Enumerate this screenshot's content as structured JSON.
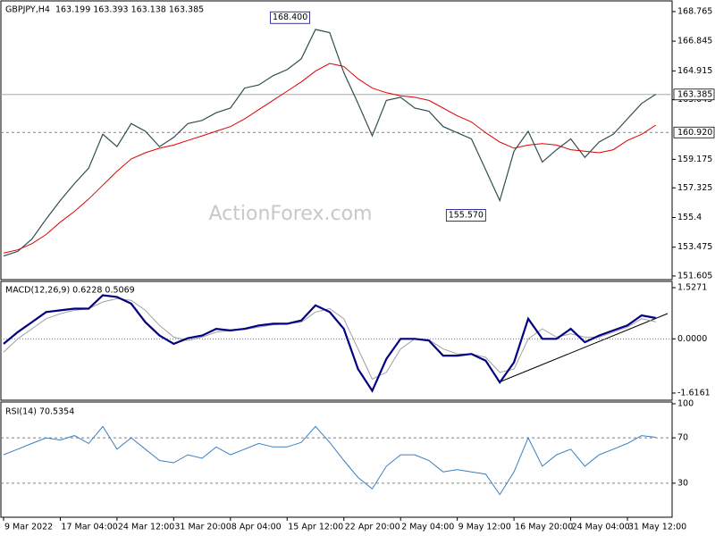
{
  "chart_data": [
    {
      "type": "line",
      "title": "GBPJPY,H4",
      "subtitle": "163.199 163.393 163.138 163.385",
      "watermark": "ActionForex.com",
      "xlim": [
        -0.75,
        188.6
      ],
      "ylim": [
        151.37,
        169.4
      ],
      "yticks": [
        168.765,
        166.845,
        164.915,
        163.045,
        159.175,
        157.325,
        155.4,
        153.475,
        151.605
      ],
      "x": [
        0,
        4,
        8,
        12,
        16,
        20,
        24,
        28,
        32,
        36,
        40,
        44,
        48,
        52,
        56,
        60,
        64,
        68,
        72,
        76,
        80,
        84,
        88,
        92,
        96,
        100,
        104,
        108,
        112,
        116,
        120,
        124,
        128,
        132,
        136,
        140,
        144,
        148,
        152,
        156,
        160,
        164,
        168,
        172,
        176,
        180,
        184
      ],
      "series": [
        {
          "color": "#2f4f4f",
          "width": 1.2,
          "values": [
            152.9,
            153.2,
            154.0,
            155.3,
            156.5,
            157.6,
            158.6,
            160.8,
            160.0,
            161.5,
            161.0,
            160.0,
            160.6,
            161.5,
            161.7,
            162.2,
            162.5,
            163.8,
            164.0,
            164.6,
            165.0,
            165.7,
            167.6,
            167.4,
            164.8,
            162.8,
            160.7,
            163.0,
            163.2,
            162.5,
            162.3,
            161.3,
            160.9,
            160.5,
            158.5,
            156.5,
            159.7,
            161.0,
            159.0,
            159.8,
            160.5,
            159.3,
            160.3,
            160.8,
            161.8,
            162.8,
            163.4
          ]
        },
        {
          "color": "#e00000",
          "width": 1,
          "values": [
            153.1,
            153.3,
            153.7,
            154.3,
            155.1,
            155.8,
            156.6,
            157.5,
            158.4,
            159.2,
            159.6,
            159.9,
            160.1,
            160.4,
            160.7,
            161.0,
            161.3,
            161.8,
            162.4,
            163.0,
            163.6,
            164.2,
            164.9,
            165.4,
            165.2,
            164.4,
            163.8,
            163.5,
            163.3,
            163.2,
            163.0,
            162.5,
            162.0,
            161.6,
            160.9,
            160.3,
            159.9,
            160.1,
            160.2,
            160.1,
            159.8,
            159.7,
            159.6,
            159.8,
            160.4,
            160.8,
            161.4
          ]
        }
      ],
      "levels": [
        {
          "value": 163.385,
          "label": "163.385",
          "style": "solid"
        },
        {
          "value": 160.92,
          "label": "160.920",
          "style": "dashed"
        }
      ],
      "annotations": [
        {
          "x": 87.4,
          "value": 168.4,
          "label": "168.400"
        },
        {
          "x": 137,
          "value": 155.57,
          "label": "155.570"
        }
      ]
    },
    {
      "type": "line",
      "title": "MACD(12,26,9) 0.6228 0.5069",
      "xlim": [
        -0.75,
        188.6
      ],
      "ylim": [
        -1.83,
        1.687
      ],
      "yticks": [
        1.5271,
        {
          "value": 0,
          "label": "0.0000"
        },
        -1.6161
      ],
      "x": [
        0,
        4,
        8,
        12,
        16,
        20,
        24,
        28,
        32,
        36,
        40,
        44,
        48,
        52,
        56,
        60,
        64,
        68,
        72,
        76,
        80,
        84,
        88,
        92,
        96,
        100,
        104,
        108,
        112,
        116,
        120,
        124,
        128,
        132,
        136,
        140,
        144,
        148,
        152,
        156,
        160,
        164,
        168,
        172,
        176,
        180,
        184
      ],
      "series": [
        {
          "color": "#a0a0a0",
          "width": 1,
          "values": [
            -0.4,
            0.0,
            0.3,
            0.6,
            0.75,
            0.85,
            0.9,
            1.1,
            1.2,
            1.15,
            0.85,
            0.4,
            0.05,
            -0.05,
            0.05,
            0.2,
            0.25,
            0.28,
            0.35,
            0.42,
            0.45,
            0.5,
            0.8,
            0.9,
            0.6,
            -0.3,
            -1.2,
            -1.0,
            -0.3,
            0.0,
            -0.03,
            -0.3,
            -0.45,
            -0.45,
            -0.55,
            -1.0,
            -0.9,
            0.0,
            0.3,
            0.05,
            0.15,
            0.05,
            0.05,
            0.2,
            0.35,
            0.6,
            0.51
          ]
        },
        {
          "color": "#000080",
          "width": 2.2,
          "values": [
            -0.15,
            0.2,
            0.5,
            0.8,
            0.85,
            0.9,
            0.9,
            1.3,
            1.25,
            1.05,
            0.5,
            0.1,
            -0.15,
            0.02,
            0.1,
            0.3,
            0.25,
            0.3,
            0.4,
            0.45,
            0.45,
            0.55,
            1.0,
            0.8,
            0.3,
            -0.9,
            -1.55,
            -0.6,
            0.0,
            0.0,
            -0.05,
            -0.5,
            -0.5,
            -0.45,
            -0.65,
            -1.3,
            -0.7,
            0.6,
            0.0,
            0.0,
            0.3,
            -0.1,
            0.1,
            0.25,
            0.4,
            0.7,
            0.62
          ]
        }
      ],
      "levels": [
        {
          "value": 0,
          "style": "dotted"
        }
      ]
    },
    {
      "type": "line",
      "title": "RSI(14) 70.5354",
      "xlim": [
        -0.75,
        188.6
      ],
      "ylim": [
        0,
        100
      ],
      "yticks": [
        100,
        70,
        30
      ],
      "xticks": [
        {
          "value": 0,
          "label": "9 Mar 2022"
        },
        {
          "value": 16,
          "label": "17 Mar 04:00"
        },
        {
          "value": 32,
          "label": "24 Mar 12:00"
        },
        {
          "value": 48,
          "label": "31 Mar 20:00"
        },
        {
          "value": 64,
          "label": "8 Apr 04:00"
        },
        {
          "value": 80,
          "label": "15 Apr 12:00"
        },
        {
          "value": 96,
          "label": "22 Apr 20:00"
        },
        {
          "value": 112,
          "label": "2 May 04:00"
        },
        {
          "value": 128,
          "label": "9 May 12:00"
        },
        {
          "value": 144,
          "label": "16 May 20:00"
        },
        {
          "value": 160,
          "label": "24 May 04:00"
        },
        {
          "value": 176,
          "label": "31 May 12:00"
        }
      ],
      "x": [
        0,
        4,
        8,
        12,
        16,
        20,
        24,
        28,
        32,
        36,
        40,
        44,
        48,
        52,
        56,
        60,
        64,
        68,
        72,
        76,
        80,
        84,
        88,
        92,
        96,
        100,
        104,
        108,
        112,
        116,
        120,
        124,
        128,
        132,
        136,
        140,
        144,
        148,
        152,
        156,
        160,
        164,
        168,
        172,
        176,
        180,
        184
      ],
      "series": [
        {
          "color": "#3a7fc0",
          "width": 1,
          "values": [
            55,
            60,
            65,
            70,
            68,
            72,
            65,
            80,
            60,
            70,
            60,
            50,
            48,
            55,
            52,
            62,
            55,
            60,
            65,
            62,
            62,
            66,
            80,
            66,
            50,
            35,
            25,
            45,
            55,
            55,
            50,
            40,
            42,
            40,
            38,
            20,
            40,
            70,
            45,
            55,
            60,
            45,
            55,
            60,
            65,
            72,
            70.5
          ]
        }
      ],
      "levels": [
        {
          "value": 70,
          "style": "dashed"
        },
        {
          "value": 30,
          "style": "dashed"
        }
      ]
    }
  ]
}
